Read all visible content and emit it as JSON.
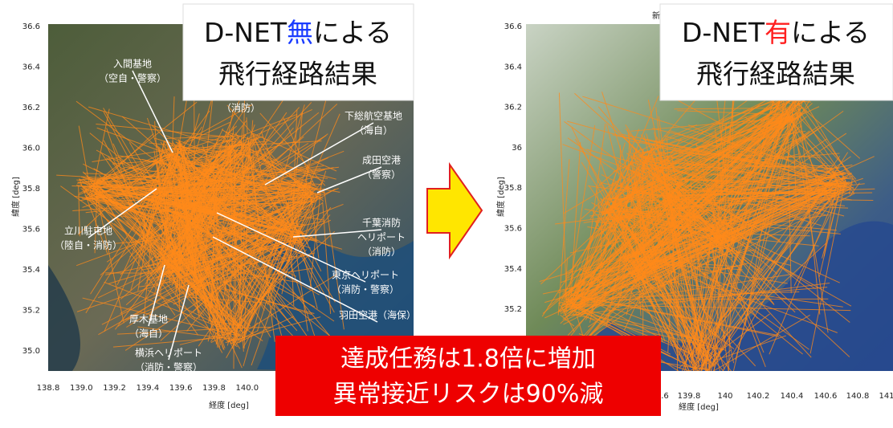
{
  "left": {
    "callout": {
      "pre": "D-NET",
      "mark": "無",
      "post": "による",
      "line2": "飛行経路結果"
    },
    "yticks": [
      "36.6",
      "36.4",
      "36.2",
      "36.0",
      "35.8",
      "35.6",
      "35.4",
      "35.2",
      "35.0"
    ],
    "xticks": [
      "138.8",
      "139.0",
      "139.2",
      "139.4",
      "139.6",
      "139.8",
      "140.0",
      "14"
    ],
    "ylabel": "緯度 [deg]",
    "xlabel": "経度 [deg]",
    "sites": [
      {
        "lines": [
          "入間基地",
          "（空自・警察）"
        ]
      },
      {
        "lines": [
          "（消防）"
        ]
      },
      {
        "lines": [
          "下総航空基地",
          "（海自）"
        ]
      },
      {
        "lines": [
          "成田空港",
          "（警察）"
        ]
      },
      {
        "lines": [
          "千葉消防",
          "ヘリポート",
          "（消防）"
        ]
      },
      {
        "lines": [
          "東京ヘリポート",
          "（消防・警察）"
        ]
      },
      {
        "lines": [
          "羽田空港（海保）"
        ]
      },
      {
        "lines": [
          "立川駐屯地",
          "（陸自・消防）"
        ]
      },
      {
        "lines": [
          "厚木基地",
          "（海自）"
        ]
      },
      {
        "lines": [
          "横浜ヘリポート",
          "（消防・警察）"
        ]
      }
    ]
  },
  "right": {
    "callout": {
      "pre": "D-NET",
      "mark": "有",
      "post": "による",
      "line2": "飛行経路結果"
    },
    "top_note": "新",
    "yticks": [
      "36.6",
      "36.4",
      "36.2",
      "36",
      "35.8",
      "35.6",
      "35.4",
      "35.2"
    ],
    "xticks": [
      ".6",
      "139.8",
      "140",
      "140.2",
      "140.4",
      "140.6",
      "140.8",
      "141"
    ],
    "ylabel": "緯度 [deg]",
    "xlabel": "経度 [deg]"
  },
  "summary": [
    "達成任務は1.8倍に増加",
    "異常接近リスクは90%減"
  ]
}
